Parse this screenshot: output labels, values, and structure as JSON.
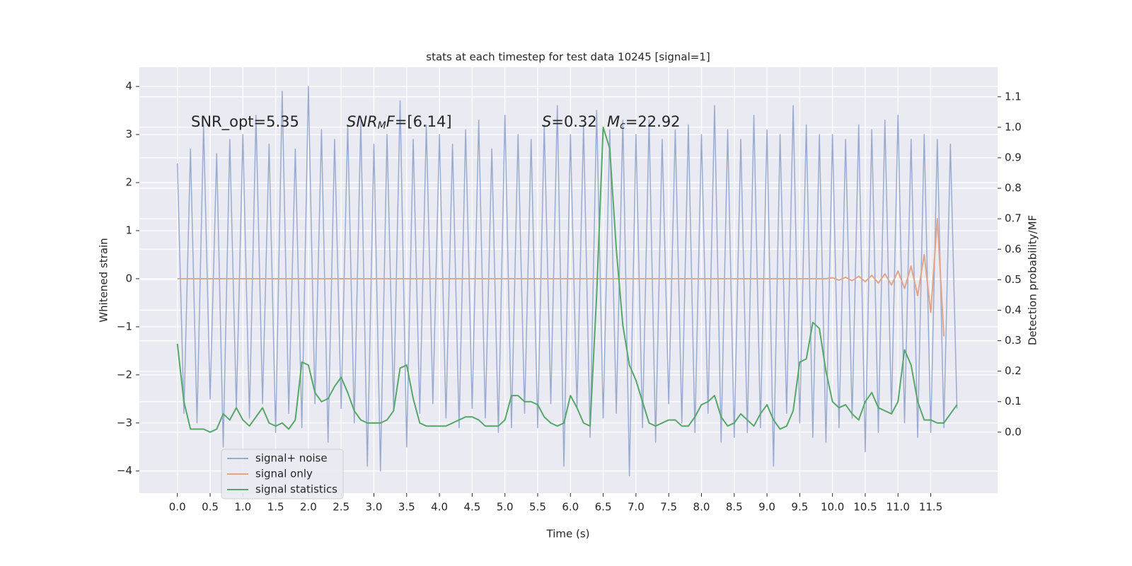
{
  "chart_data": {
    "type": "line",
    "title": "stats at each timestep for test data 10245 [signal=1]",
    "xlabel": "Time (s)",
    "ylabel": "Whitened strain",
    "y2label": "Detection probability/MF",
    "annotations": [
      [
        "SNR_opt=5.35"
      ],
      [
        "SNR",
        "M",
        "F",
        "=[6.14]"
      ],
      [
        "S",
        "=0.32"
      ],
      [
        "M",
        "c",
        "=22.92"
      ]
    ],
    "xlim": [
      -0.58,
      12.52
    ],
    "ylim": [
      -4.46,
      4.4
    ],
    "y2lim": [
      -0.2,
      1.197
    ],
    "xticks": [
      {
        "value": 0,
        "label": "0.0"
      },
      {
        "value": 0.5,
        "label": "0.5"
      },
      {
        "value": 1,
        "label": "1.0"
      },
      {
        "value": 1.5,
        "label": "1.5"
      },
      {
        "value": 2,
        "label": "2.0"
      },
      {
        "value": 2.5,
        "label": "2.5"
      },
      {
        "value": 3,
        "label": "3.0"
      },
      {
        "value": 3.5,
        "label": "3.5"
      },
      {
        "value": 4,
        "label": "4.0"
      },
      {
        "value": 4.5,
        "label": "4.5"
      },
      {
        "value": 5,
        "label": "5.0"
      },
      {
        "value": 5.5,
        "label": "5.5"
      },
      {
        "value": 6,
        "label": "6.0"
      },
      {
        "value": 6.5,
        "label": "6.5"
      },
      {
        "value": 7,
        "label": "7.0"
      },
      {
        "value": 7.5,
        "label": "7.5"
      },
      {
        "value": 8,
        "label": "8.0"
      },
      {
        "value": 8.5,
        "label": "8.5"
      },
      {
        "value": 9,
        "label": "9.0"
      },
      {
        "value": 9.5,
        "label": "9.5"
      },
      {
        "value": 10,
        "label": "10.0"
      },
      {
        "value": 10.5,
        "label": "10.5"
      },
      {
        "value": 11,
        "label": "11.0"
      },
      {
        "value": 11.5,
        "label": "11.5"
      }
    ],
    "yticks": [
      {
        "value": -4,
        "label": "−4"
      },
      {
        "value": -3,
        "label": "−3"
      },
      {
        "value": -2,
        "label": "−2"
      },
      {
        "value": -1,
        "label": "−1"
      },
      0,
      1,
      2,
      3,
      4
    ],
    "y2ticks": [
      {
        "value": 0,
        "label": "0.0"
      },
      {
        "value": 0.1,
        "label": "0.1"
      },
      {
        "value": 0.2,
        "label": "0.2"
      },
      {
        "value": 0.3,
        "label": "0.3"
      },
      {
        "value": 0.4,
        "label": "0.4"
      },
      {
        "value": 0.5,
        "label": "0.5"
      },
      {
        "value": 0.6,
        "label": "0.6"
      },
      {
        "value": 0.7,
        "label": "0.7"
      },
      {
        "value": 0.8,
        "label": "0.8"
      },
      {
        "value": 0.9,
        "label": "0.9"
      },
      {
        "value": 1,
        "label": "1.0"
      },
      {
        "value": 1.1,
        "label": "1.1"
      }
    ],
    "grid": true,
    "legend": "lower left",
    "x": [
      0,
      0.1,
      0.2,
      0.3,
      0.4,
      0.5,
      0.6,
      0.7,
      0.8,
      0.9,
      1,
      1.1,
      1.2,
      1.3,
      1.4,
      1.5,
      1.6,
      1.7,
      1.8,
      1.9,
      2,
      2.1,
      2.2,
      2.3,
      2.4,
      2.5,
      2.6,
      2.7,
      2.8,
      2.9,
      3,
      3.1,
      3.2,
      3.3,
      3.4,
      3.5,
      3.6,
      3.7,
      3.8,
      3.9,
      4,
      4.1,
      4.2,
      4.3,
      4.4,
      4.5,
      4.6,
      4.7,
      4.8,
      4.9,
      5,
      5.1,
      5.2,
      5.3,
      5.4,
      5.5,
      5.6,
      5.7,
      5.8,
      5.9,
      6,
      6.1,
      6.2,
      6.3,
      6.4,
      6.5,
      6.6,
      6.7,
      6.8,
      6.9,
      7,
      7.1,
      7.2,
      7.3,
      7.4,
      7.5,
      7.6,
      7.7,
      7.8,
      7.9,
      8,
      8.1,
      8.2,
      8.3,
      8.4,
      8.5,
      8.6,
      8.7,
      8.8,
      8.9,
      9,
      9.1,
      9.2,
      9.3,
      9.4,
      9.5,
      9.6,
      9.7,
      9.8,
      9.9,
      10,
      10.1,
      10.2,
      10.3,
      10.4,
      10.5,
      10.6,
      10.7,
      10.8,
      10.9,
      11,
      11.1,
      11.2,
      11.3,
      11.4,
      11.5,
      11.6,
      11.7,
      11.8,
      11.9
    ],
    "series": [
      {
        "name": "signal+ noise",
        "color": "#9aabd0",
        "values": [
          2.4,
          -2.8,
          2.7,
          -3.0,
          3.2,
          -2.5,
          2.6,
          -3.5,
          2.9,
          -2.7,
          3.0,
          -2.9,
          3.4,
          -2.6,
          2.8,
          -3.2,
          3.9,
          -2.8,
          2.7,
          -3.1,
          4.0,
          -2.6,
          3.1,
          -3.4,
          2.9,
          -2.7,
          3.2,
          -3.0,
          3.3,
          -3.9,
          2.8,
          -4.0,
          3.0,
          -2.7,
          3.7,
          -3.5,
          2.9,
          -2.8,
          3.2,
          -2.6,
          3.0,
          -2.9,
          2.8,
          -3.1,
          3.1,
          -2.7,
          3.3,
          -2.9,
          2.7,
          -3.2,
          3.4,
          -3.1,
          3.0,
          -2.8,
          2.9,
          -3.1,
          3.2,
          -2.6,
          3.6,
          -3.9,
          3.0,
          -2.7,
          3.2,
          -3.3,
          3.5,
          -2.9,
          3.1,
          -2.8,
          3.3,
          -4.1,
          3.0,
          -3.1,
          3.3,
          -3.4,
          2.9,
          -2.6,
          3.1,
          -3.0,
          3.2,
          -3.2,
          3.0,
          -2.8,
          3.6,
          -3.4,
          3.1,
          -3.3,
          2.9,
          -3.2,
          3.4,
          -3.1,
          3.1,
          -3.9,
          3.0,
          -2.8,
          3.6,
          -3.0,
          3.2,
          -3.3,
          3.0,
          -3.4,
          3.0,
          -3.1,
          2.9,
          -2.9,
          3.2,
          -3.6,
          3.1,
          -3.2,
          3.3,
          -2.8,
          3.4,
          -3.0,
          2.9,
          -3.3,
          3.0,
          -3.2,
          2.9,
          -3.1,
          2.8,
          -2.7
        ]
      },
      {
        "name": "signal only",
        "color": "#e0a58a",
        "values": [
          0,
          0,
          0,
          0,
          0,
          0,
          0,
          0,
          0,
          0,
          0,
          0,
          0,
          0,
          0,
          0,
          0,
          0,
          0,
          0,
          0,
          0,
          0,
          0,
          0,
          0,
          0,
          0,
          0,
          0,
          0,
          0,
          0,
          0,
          0,
          0,
          0,
          0,
          0,
          0,
          0,
          0,
          0,
          0,
          0,
          0,
          0,
          0,
          0,
          0,
          0,
          0,
          0,
          0,
          0,
          0,
          0,
          0,
          0,
          0,
          0,
          0,
          0,
          0,
          0,
          0,
          0,
          0,
          0,
          0,
          0,
          0,
          0,
          0,
          0,
          0,
          0,
          0,
          0,
          0,
          0,
          0,
          0,
          0,
          0,
          0,
          0,
          0,
          0,
          0,
          0,
          0,
          0,
          0,
          0,
          0,
          0,
          0,
          0,
          0,
          0.02,
          -0.03,
          0.03,
          -0.04,
          0.05,
          -0.06,
          0.07,
          -0.09,
          0.1,
          -0.13,
          0.16,
          -0.2,
          0.26,
          -0.35,
          0.5,
          -0.7,
          1.25,
          -1.2,
          null,
          null
        ]
      },
      {
        "name": "signal statistics",
        "color": "#55a868",
        "axis": "y2",
        "values": [
          0.29,
          0.1,
          0.01,
          0.01,
          0.01,
          0.0,
          0.01,
          0.06,
          0.04,
          0.08,
          0.04,
          0.02,
          0.05,
          0.08,
          0.03,
          0.02,
          0.03,
          0.01,
          0.04,
          0.23,
          0.22,
          0.13,
          0.1,
          0.11,
          0.15,
          0.18,
          0.13,
          0.07,
          0.04,
          0.03,
          0.03,
          0.03,
          0.04,
          0.07,
          0.21,
          0.22,
          0.11,
          0.03,
          0.02,
          0.02,
          0.02,
          0.02,
          0.03,
          0.04,
          0.05,
          0.05,
          0.04,
          0.02,
          0.02,
          0.02,
          0.04,
          0.12,
          0.12,
          0.1,
          0.1,
          0.09,
          0.05,
          0.03,
          0.02,
          0.03,
          0.12,
          0.08,
          0.03,
          0.02,
          0.45,
          1.0,
          0.93,
          0.6,
          0.35,
          0.22,
          0.17,
          0.1,
          0.03,
          0.02,
          0.03,
          0.04,
          0.04,
          0.02,
          0.02,
          0.05,
          0.09,
          0.1,
          0.12,
          0.05,
          0.02,
          0.03,
          0.06,
          0.04,
          0.02,
          0.06,
          0.09,
          0.04,
          0.01,
          0.02,
          0.07,
          0.23,
          0.24,
          0.36,
          0.34,
          0.2,
          0.1,
          0.08,
          0.09,
          0.06,
          0.04,
          0.1,
          0.13,
          0.08,
          0.07,
          0.06,
          0.1,
          0.27,
          0.22,
          0.1,
          0.04,
          0.04,
          0.03,
          0.03,
          0.06,
          0.09
        ]
      }
    ]
  }
}
